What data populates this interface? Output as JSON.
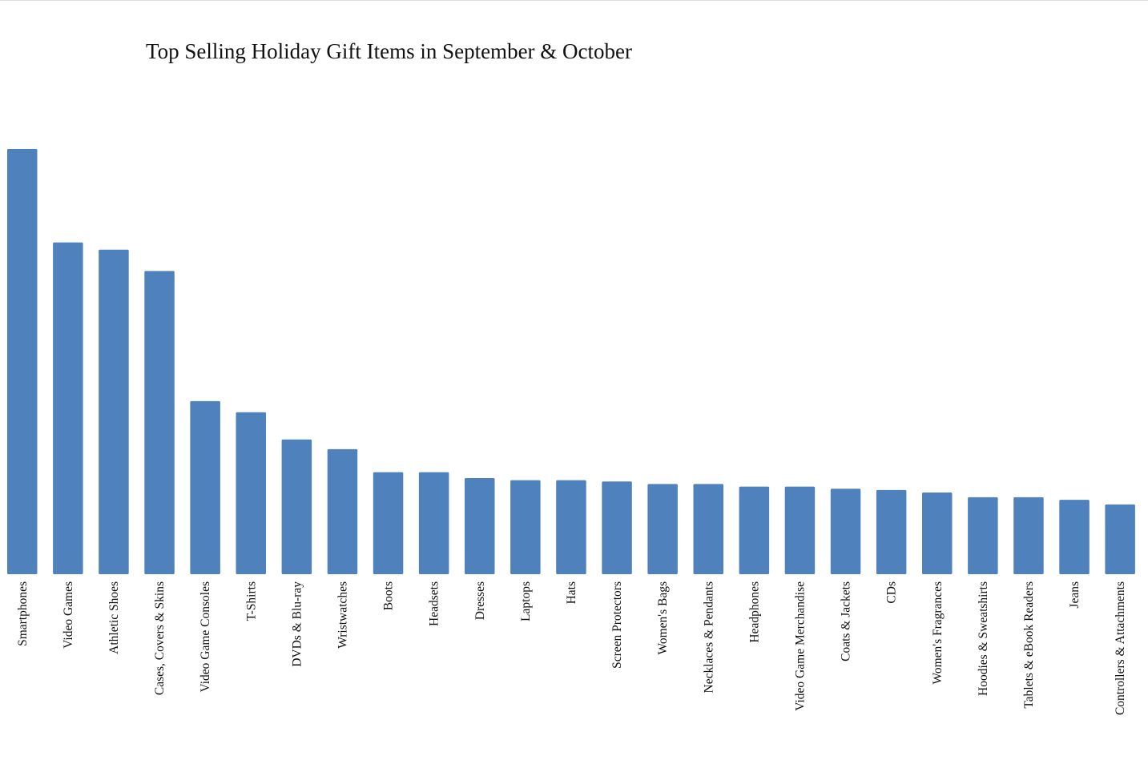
{
  "chart_data": {
    "type": "bar",
    "title": "Top Selling Holiday Gift Items in September & October",
    "xlabel": "",
    "ylabel": "",
    "categories": [
      "Smartphones",
      "Video Games",
      "Athletic Shoes",
      "Cases, Covers & Skins",
      "Video Game Consoles",
      "T-Shirts",
      "DVDs & Blu-ray",
      "Wristwatches",
      "Boots",
      "Headsets",
      "Dresses",
      "Laptops",
      "Hats",
      "Screen Protectors",
      "Women's Bags",
      "Necklaces & Pendants",
      "Headphones",
      "Video Game Merchandise",
      "Coats & Jackets",
      "CDs",
      "Women's Fragrances",
      "Hoodies & Sweatshirts",
      "Tablets & eBook Readers",
      "Jeans",
      "Controllers & Attachments"
    ],
    "values": [
      100,
      78,
      76.3,
      71.3,
      40.7,
      38.1,
      31.7,
      29.4,
      24,
      24,
      22.6,
      22.1,
      22.1,
      21.8,
      21.2,
      21.2,
      20.6,
      20.6,
      20.1,
      19.8,
      19.2,
      18.1,
      18.1,
      17.5,
      16.4
    ],
    "ylim": [
      0,
      100
    ],
    "grid": false,
    "legend": "none",
    "bar_color": "#4f81bd"
  }
}
